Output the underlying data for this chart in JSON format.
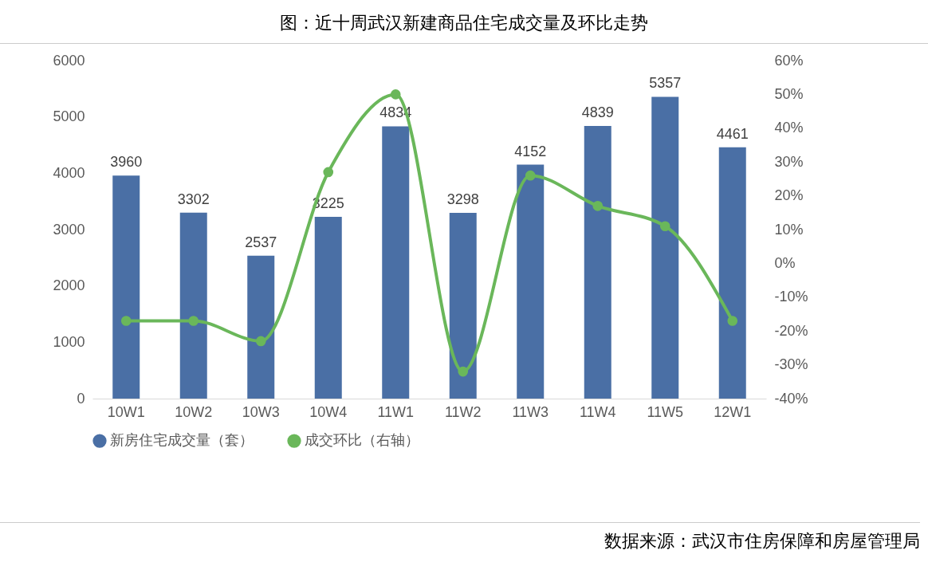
{
  "chart_data": {
    "type": "bar",
    "title": "图：近十周武汉新建商品住宅成交量及环比走势",
    "categories": [
      "10W1",
      "10W2",
      "10W3",
      "10W4",
      "11W1",
      "11W2",
      "11W3",
      "11W4",
      "11W5",
      "12W1"
    ],
    "series": [
      {
        "name": "新房住宅成交量（套）",
        "color": "#4a6fa5",
        "values": [
          3960,
          3302,
          2537,
          3225,
          4834,
          3298,
          4152,
          4839,
          5357,
          4461
        ],
        "value_labels": [
          "3960",
          "3302",
          "2537",
          "3225",
          "4834",
          "3298",
          "4152",
          "4839",
          "5357",
          "4461"
        ]
      },
      {
        "name": "成交环比（右轴）",
        "type": "line",
        "axis": "y2",
        "color": "#6ab75a",
        "values": [
          -17,
          -17,
          -23,
          27,
          50,
          -32,
          26,
          17,
          11,
          -17
        ]
      }
    ],
    "ylim": [
      0,
      6000
    ],
    "yticks": [
      0,
      1000,
      2000,
      3000,
      4000,
      5000,
      6000
    ],
    "y2lim": [
      -40,
      60
    ],
    "y2ticks": [
      {
        "value": -40,
        "label": "-40%"
      },
      {
        "value": -30,
        "label": "-30%"
      },
      {
        "value": -20,
        "label": "-20%"
      },
      {
        "value": -10,
        "label": "-10%"
      },
      {
        "value": 0,
        "label": "0%"
      },
      {
        "value": 10,
        "label": "10%"
      },
      {
        "value": 20,
        "label": "20%"
      },
      {
        "value": 30,
        "label": "30%"
      },
      {
        "value": 40,
        "label": "40%"
      },
      {
        "value": 50,
        "label": "50%"
      },
      {
        "value": 60,
        "label": "60%"
      }
    ],
    "grid": false,
    "legend": "bottom",
    "marker": "circle",
    "line_style": "solid",
    "annotations": [
      "数据来源：武汉市住房保障和房屋管理局"
    ]
  }
}
